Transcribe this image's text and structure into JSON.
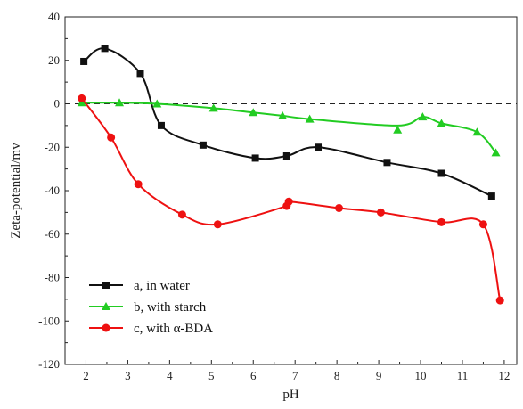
{
  "chart_data": {
    "type": "scatter",
    "xlabel": "pH",
    "ylabel": "Zeta-potential/mv",
    "xlim": [
      1.5,
      12.3
    ],
    "ylim": [
      -120,
      40
    ],
    "xticks": [
      2,
      3,
      4,
      5,
      6,
      7,
      8,
      9,
      10,
      11,
      12
    ],
    "yticks": [
      40,
      20,
      0,
      -20,
      -40,
      -60,
      -80,
      -100,
      -120
    ],
    "zero_line": "dashed",
    "grid": false,
    "legend": {
      "placement": "bottom-left"
    },
    "series": [
      {
        "name": "a, in water",
        "color": "#111111",
        "marker": "square",
        "x": [
          1.95,
          2.45,
          3.3,
          3.8,
          4.8,
          6.05,
          6.8,
          7.55,
          9.2,
          10.5,
          11.7
        ],
        "y": [
          19.5,
          25.5,
          14,
          -10,
          -19,
          -25,
          -24,
          -20,
          -27,
          -32,
          -42.5
        ],
        "curve_y": [
          19.5,
          25.5,
          14,
          -10,
          -19,
          -25,
          -24,
          -20,
          -27,
          -32,
          -42.5
        ]
      },
      {
        "name": "b, with starch",
        "color": "#22cc22",
        "marker": "triangle",
        "x": [
          1.9,
          2.8,
          3.7,
          5.05,
          6.0,
          6.7,
          7.35,
          9.45,
          10.05,
          10.5,
          11.35,
          11.8
        ],
        "y": [
          0.5,
          0.5,
          0,
          -2,
          -4,
          -5.5,
          -7,
          -12,
          -6,
          -9,
          -13,
          -22.5
        ],
        "curve_y": [
          0.5,
          0.5,
          0,
          -2,
          -4,
          -5.5,
          -7,
          -10,
          -6,
          -9,
          -13,
          -22.5
        ]
      },
      {
        "name": "c, with α-BDA",
        "color": "#ee1111",
        "marker": "circle",
        "x": [
          1.9,
          2.6,
          3.25,
          4.3,
          5.15,
          6.8,
          6.85,
          8.05,
          9.05,
          10.5,
          11.5,
          11.9
        ],
        "y": [
          2.5,
          -15.5,
          -37,
          -51,
          -55.5,
          -47,
          -45,
          -48,
          -50,
          -54.5,
          -55.5,
          -90.5
        ],
        "curve_y": [
          2.5,
          -15.5,
          -37,
          -51,
          -55.5,
          -47,
          -45,
          -48,
          -50,
          -54.5,
          -55.5,
          -90.5
        ]
      }
    ]
  }
}
